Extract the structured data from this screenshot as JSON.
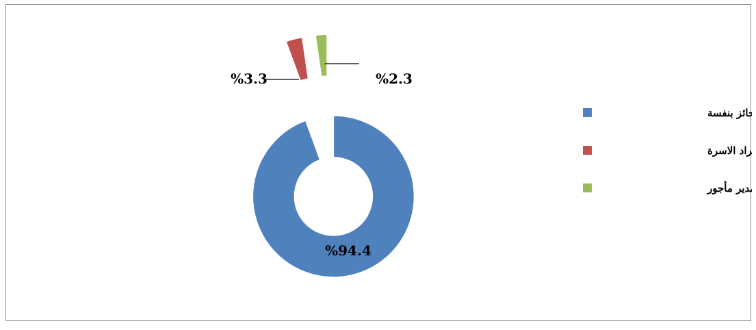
{
  "chart_data": {
    "type": "pie",
    "donut": true,
    "exploded": true,
    "legend_position": "right",
    "slices": [
      {
        "label": "يديرها الحائز بنفسة",
        "value": 94.4,
        "value_label": "%94.4",
        "color": "#4f81bd"
      },
      {
        "label": "يديرها احد افراد الاسرة",
        "value": 3.3,
        "value_label": "%3.3",
        "color": "#c0504d"
      },
      {
        "label": "يديرها مدير مأجور",
        "value": 2.3,
        "value_label": "%2.3",
        "color": "#9bbb59"
      }
    ]
  }
}
